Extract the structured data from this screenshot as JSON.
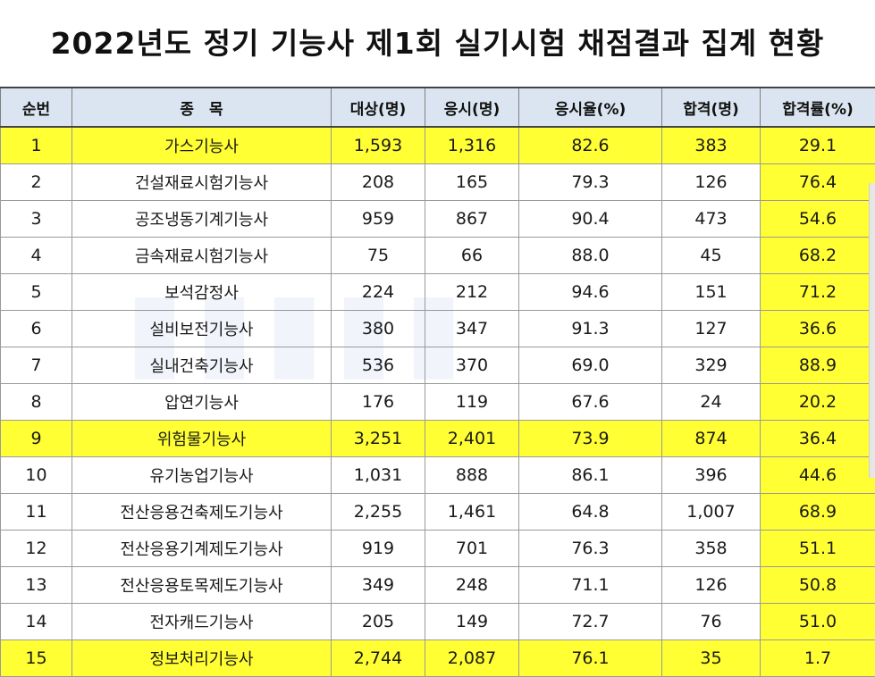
{
  "title": "2022년도 정기 기능사 제1회 실기시험 채점결과 집계 현황",
  "headers": [
    "순번",
    "종　목",
    "대상(명)",
    "응시(명)",
    "응시율(%)",
    "합격(명)",
    "합격률(%)"
  ],
  "rows": [
    {
      "no": "1",
      "name": "가스기능사",
      "target": "1,593",
      "applied": "1,316",
      "apply_rate": "82.6",
      "passed": "383",
      "pass_rate": "29.1",
      "highlight": true
    },
    {
      "no": "2",
      "name": "건설재료시험기능사",
      "target": "208",
      "applied": "165",
      "apply_rate": "79.3",
      "passed": "126",
      "pass_rate": "76.4",
      "highlight": false
    },
    {
      "no": "3",
      "name": "공조냉동기계기능사",
      "target": "959",
      "applied": "867",
      "apply_rate": "90.4",
      "passed": "473",
      "pass_rate": "54.6",
      "highlight": false
    },
    {
      "no": "4",
      "name": "금속재료시험기능사",
      "target": "75",
      "applied": "66",
      "apply_rate": "88.0",
      "passed": "45",
      "pass_rate": "68.2",
      "highlight": false
    },
    {
      "no": "5",
      "name": "보석감정사",
      "target": "224",
      "applied": "212",
      "apply_rate": "94.6",
      "passed": "151",
      "pass_rate": "71.2",
      "highlight": false
    },
    {
      "no": "6",
      "name": "설비보전기능사",
      "target": "380",
      "applied": "347",
      "apply_rate": "91.3",
      "passed": "127",
      "pass_rate": "36.6",
      "highlight": false
    },
    {
      "no": "7",
      "name": "실내건축기능사",
      "target": "536",
      "applied": "370",
      "apply_rate": "69.0",
      "passed": "329",
      "pass_rate": "88.9",
      "highlight": false
    },
    {
      "no": "8",
      "name": "압연기능사",
      "target": "176",
      "applied": "119",
      "apply_rate": "67.6",
      "passed": "24",
      "pass_rate": "20.2",
      "highlight": false
    },
    {
      "no": "9",
      "name": "위험물기능사",
      "target": "3,251",
      "applied": "2,401",
      "apply_rate": "73.9",
      "passed": "874",
      "pass_rate": "36.4",
      "highlight": true
    },
    {
      "no": "10",
      "name": "유기농업기능사",
      "target": "1,031",
      "applied": "888",
      "apply_rate": "86.1",
      "passed": "396",
      "pass_rate": "44.6",
      "highlight": false
    },
    {
      "no": "11",
      "name": "전산응용건축제도기능사",
      "target": "2,255",
      "applied": "1,461",
      "apply_rate": "64.8",
      "passed": "1,007",
      "pass_rate": "68.9",
      "highlight": false
    },
    {
      "no": "12",
      "name": "전산응용기계제도기능사",
      "target": "919",
      "applied": "701",
      "apply_rate": "76.3",
      "passed": "358",
      "pass_rate": "51.1",
      "highlight": false
    },
    {
      "no": "13",
      "name": "전산응용토목제도기능사",
      "target": "349",
      "applied": "248",
      "apply_rate": "71.1",
      "passed": "126",
      "pass_rate": "50.8",
      "highlight": false
    },
    {
      "no": "14",
      "name": "전자캐드기능사",
      "target": "205",
      "applied": "149",
      "apply_rate": "72.7",
      "passed": "76",
      "pass_rate": "51.0",
      "highlight": false
    },
    {
      "no": "15",
      "name": "정보처리기능사",
      "target": "2,744",
      "applied": "2,087",
      "apply_rate": "76.1",
      "passed": "35",
      "pass_rate": "1.7",
      "highlight": true
    }
  ],
  "colors": {
    "highlight": "#ffff33",
    "header_bg": "#dbe5f1"
  }
}
